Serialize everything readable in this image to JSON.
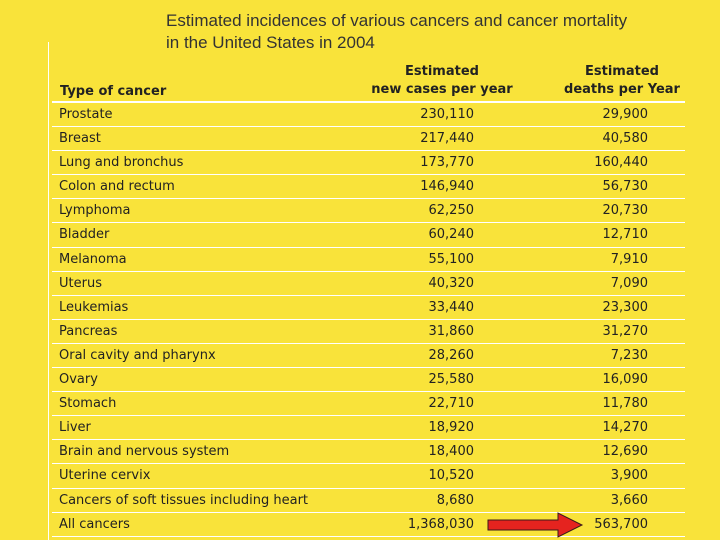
{
  "title": {
    "line1": "Estimated incidences of various cancers and cancer mortality",
    "line2": "in the United States in 2004"
  },
  "table": {
    "headers": {
      "type": "Type of cancer",
      "cases_line1": "Estimated",
      "cases_line2": "new cases per year",
      "deaths_line1": "Estimated",
      "deaths_line2": "deaths per Year"
    },
    "rows": [
      {
        "name": "Prostate",
        "cases": "230,110",
        "deaths": "29,900"
      },
      {
        "name": "Breast",
        "cases": "217,440",
        "deaths": "40,580"
      },
      {
        "name": "Lung and bronchus",
        "cases": "173,770",
        "deaths": "160,440"
      },
      {
        "name": "Colon and rectum",
        "cases": "146,940",
        "deaths": "56,730"
      },
      {
        "name": "Lymphoma",
        "cases": "62,250",
        "deaths": "20,730"
      },
      {
        "name": "Bladder",
        "cases": "60,240",
        "deaths": "12,710"
      },
      {
        "name": "Melanoma",
        "cases": "55,100",
        "deaths": "7,910"
      },
      {
        "name": "Uterus",
        "cases": "40,320",
        "deaths": "7,090"
      },
      {
        "name": "Leukemias",
        "cases": "33,440",
        "deaths": "23,300"
      },
      {
        "name": "Pancreas",
        "cases": "31,860",
        "deaths": "31,270"
      },
      {
        "name": "Oral cavity and pharynx",
        "cases": "28,260",
        "deaths": "7,230"
      },
      {
        "name": "Ovary",
        "cases": "25,580",
        "deaths": "16,090"
      },
      {
        "name": "Stomach",
        "cases": "22,710",
        "deaths": "11,780"
      },
      {
        "name": "Liver",
        "cases": "18,920",
        "deaths": "14,270"
      },
      {
        "name": "Brain and nervous system",
        "cases": "18,400",
        "deaths": "12,690"
      },
      {
        "name": "Uterine cervix",
        "cases": "10,520",
        "deaths": "3,900"
      },
      {
        "name": "Cancers of soft tissues including heart",
        "cases": "8,680",
        "deaths": "3,660"
      },
      {
        "name": "All cancers",
        "cases": "1,368,030",
        "deaths": "563,700"
      }
    ]
  },
  "colors": {
    "background": "#f9e33a",
    "arrow": "#e5231f"
  },
  "annotation": {
    "icon": "red-arrow-icon"
  }
}
